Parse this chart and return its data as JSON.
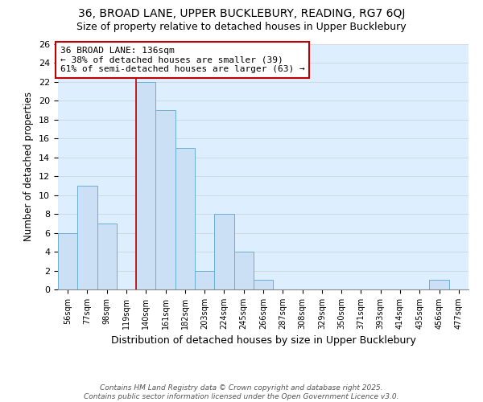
{
  "title1": "36, BROAD LANE, UPPER BUCKLEBURY, READING, RG7 6QJ",
  "title2": "Size of property relative to detached houses in Upper Bucklebury",
  "xlabel": "Distribution of detached houses by size in Upper Bucklebury",
  "ylabel": "Number of detached properties",
  "bins": [
    "56sqm",
    "77sqm",
    "98sqm",
    "119sqm",
    "140sqm",
    "161sqm",
    "182sqm",
    "203sqm",
    "224sqm",
    "245sqm",
    "266sqm",
    "287sqm",
    "308sqm",
    "329sqm",
    "350sqm",
    "371sqm",
    "393sqm",
    "414sqm",
    "435sqm",
    "456sqm",
    "477sqm"
  ],
  "values": [
    6,
    11,
    7,
    0,
    22,
    19,
    15,
    2,
    8,
    4,
    1,
    0,
    0,
    0,
    0,
    0,
    0,
    0,
    0,
    1,
    0
  ],
  "bar_color": "#cce0f5",
  "bar_edge_color": "#6aaed6",
  "grid_color": "#d0d8e0",
  "vline_color": "#c00000",
  "annotation_text": "36 BROAD LANE: 136sqm\n← 38% of detached houses are smaller (39)\n61% of semi-detached houses are larger (63) →",
  "annotation_box_color": "#ffffff",
  "annotation_box_edge": "#c00000",
  "ylim": [
    0,
    26
  ],
  "yticks": [
    0,
    2,
    4,
    6,
    8,
    10,
    12,
    14,
    16,
    18,
    20,
    22,
    24,
    26
  ],
  "footnote": "Contains HM Land Registry data © Crown copyright and database right 2025.\nContains public sector information licensed under the Open Government Licence v3.0.",
  "bg_color": "#ddeeff",
  "title1_fontsize": 10,
  "title2_fontsize": 9
}
